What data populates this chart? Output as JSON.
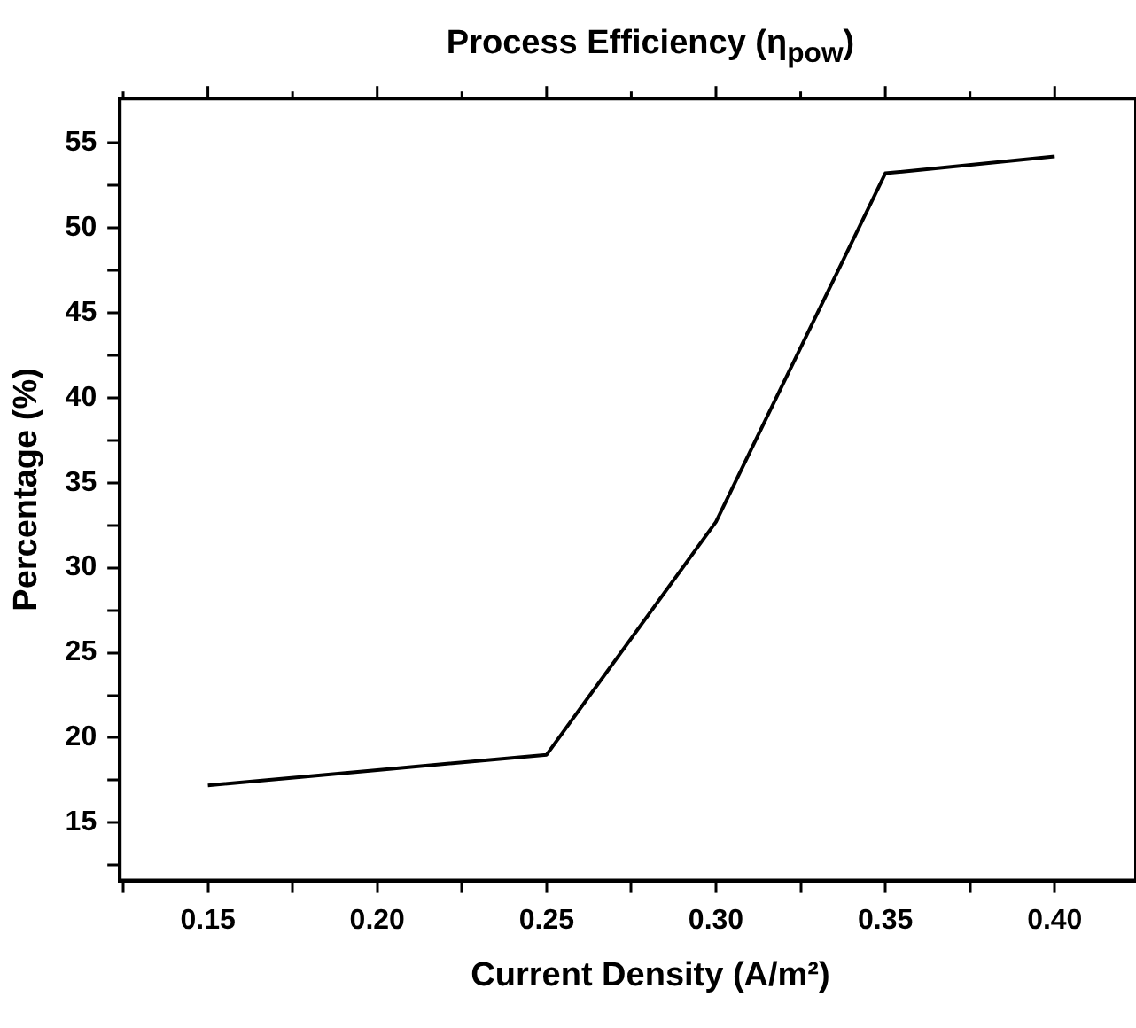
{
  "chart_data": {
    "type": "line",
    "title": "Process Efficiency (η$_{pow}$)",
    "xlabel": "Current Density (A/m²)",
    "ylabel": "Percentage (%)",
    "x": [
      0.15,
      0.2,
      0.25,
      0.3,
      0.35,
      0.4
    ],
    "series": [
      {
        "color": "#000000",
        "values": [
          17.2,
          18.1,
          19.0,
          32.7,
          53.2,
          54.2
        ]
      }
    ],
    "xlim": [
      0.124,
      0.424
    ],
    "ylim": [
      11.6,
      57.6
    ],
    "xticks": [
      {
        "value": 0.125,
        "label": null
      },
      {
        "value": 0.15,
        "label": "0.15"
      },
      {
        "value": 0.175,
        "label": null
      },
      {
        "value": 0.2,
        "label": "0.20"
      },
      {
        "value": 0.225,
        "label": null
      },
      {
        "value": 0.25,
        "label": "0.25"
      },
      {
        "value": 0.275,
        "label": null
      },
      {
        "value": 0.3,
        "label": "0.30"
      },
      {
        "value": 0.325,
        "label": null
      },
      {
        "value": 0.35,
        "label": "0.35"
      },
      {
        "value": 0.375,
        "label": null
      },
      {
        "value": 0.4,
        "label": "0.40"
      }
    ],
    "yticks": [
      {
        "value": 12.5,
        "label": null
      },
      15,
      {
        "value": 17.5,
        "label": null
      },
      20,
      {
        "value": 22.5,
        "label": null
      },
      25,
      {
        "value": 27.5,
        "label": null
      },
      30,
      {
        "value": 32.5,
        "label": null
      },
      35,
      {
        "value": 37.5,
        "label": null
      },
      40,
      {
        "value": 42.5,
        "label": null
      },
      45,
      {
        "value": 47.5,
        "label": null
      },
      50,
      {
        "value": 52.5,
        "label": null
      },
      55
    ],
    "grid": false,
    "legend": false,
    "marker": "none",
    "line_style": "solid"
  }
}
